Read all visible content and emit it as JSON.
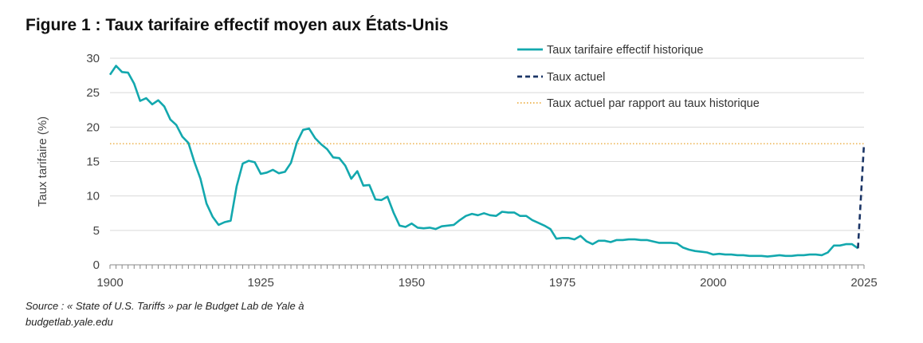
{
  "figure": {
    "title": "Figure 1 : Taux tarifaire effectif moyen aux États-Unis",
    "source_line1": "Source : « State of U.S. Tariffs » par le Budget Lab de Yale à",
    "source_line2": "budgetlab.yale.edu"
  },
  "colors": {
    "historical": "#13A8AE",
    "current": "#1B3566",
    "reference": "#E9A32A",
    "grid": "#D9D9D9",
    "axis": "#888888"
  },
  "chart_data": {
    "type": "line",
    "title": "",
    "xlabel": "",
    "ylabel": "Taux tarifaire (%)",
    "xlim": [
      1900,
      2025
    ],
    "ylim": [
      0,
      30
    ],
    "xticks": [
      1900,
      1925,
      1950,
      1975,
      2000,
      2025
    ],
    "yticks": [
      0,
      5,
      10,
      15,
      20,
      25,
      30
    ],
    "grid": "horizontal",
    "legend_position": "top-right",
    "series": [
      {
        "name": "Taux tarifaire effectif historique",
        "style": "solid",
        "color": "#13A8AE",
        "x": [
          1900,
          1901,
          1902,
          1903,
          1904,
          1905,
          1906,
          1907,
          1908,
          1909,
          1910,
          1911,
          1912,
          1913,
          1914,
          1915,
          1916,
          1917,
          1918,
          1919,
          1920,
          1921,
          1922,
          1923,
          1924,
          1925,
          1926,
          1927,
          1928,
          1929,
          1930,
          1931,
          1932,
          1933,
          1934,
          1935,
          1936,
          1937,
          1938,
          1939,
          1940,
          1941,
          1942,
          1943,
          1944,
          1945,
          1946,
          1947,
          1948,
          1949,
          1950,
          1951,
          1952,
          1953,
          1954,
          1955,
          1956,
          1957,
          1958,
          1959,
          1960,
          1961,
          1962,
          1963,
          1964,
          1965,
          1966,
          1967,
          1968,
          1969,
          1970,
          1971,
          1972,
          1973,
          1974,
          1975,
          1976,
          1977,
          1978,
          1979,
          1980,
          1981,
          1982,
          1983,
          1984,
          1985,
          1986,
          1987,
          1988,
          1989,
          1990,
          1991,
          1992,
          1993,
          1994,
          1995,
          1996,
          1997,
          1998,
          1999,
          2000,
          2001,
          2002,
          2003,
          2004,
          2005,
          2006,
          2007,
          2008,
          2009,
          2010,
          2011,
          2012,
          2013,
          2014,
          2015,
          2016,
          2017,
          2018,
          2019,
          2020,
          2021,
          2022,
          2023,
          2024
        ],
        "y": [
          27.6,
          28.9,
          28.0,
          27.9,
          26.3,
          23.8,
          24.2,
          23.3,
          23.9,
          23.0,
          21.1,
          20.3,
          18.6,
          17.7,
          14.9,
          12.5,
          8.9,
          7.0,
          5.8,
          6.2,
          6.4,
          11.4,
          14.7,
          15.1,
          14.9,
          13.2,
          13.4,
          13.8,
          13.3,
          13.5,
          14.8,
          17.8,
          19.6,
          19.8,
          18.4,
          17.5,
          16.8,
          15.6,
          15.5,
          14.4,
          12.5,
          13.6,
          11.5,
          11.6,
          9.5,
          9.4,
          9.9,
          7.6,
          5.7,
          5.5,
          6.0,
          5.4,
          5.3,
          5.4,
          5.2,
          5.6,
          5.7,
          5.8,
          6.5,
          7.1,
          7.4,
          7.2,
          7.5,
          7.2,
          7.1,
          7.7,
          7.6,
          7.6,
          7.1,
          7.1,
          6.5,
          6.1,
          5.7,
          5.2,
          3.8,
          3.9,
          3.9,
          3.7,
          4.2,
          3.4,
          3.0,
          3.5,
          3.5,
          3.3,
          3.6,
          3.6,
          3.7,
          3.7,
          3.6,
          3.6,
          3.4,
          3.2,
          3.2,
          3.2,
          3.1,
          2.5,
          2.2,
          2.0,
          1.9,
          1.8,
          1.5,
          1.6,
          1.5,
          1.5,
          1.4,
          1.4,
          1.3,
          1.3,
          1.3,
          1.2,
          1.3,
          1.4,
          1.3,
          1.3,
          1.4,
          1.4,
          1.5,
          1.5,
          1.4,
          1.8,
          2.8,
          2.8,
          3.0,
          3.0,
          2.4
        ]
      },
      {
        "name": "Taux actuel",
        "style": "dashed",
        "color": "#1B3566",
        "x": [
          2024,
          2025
        ],
        "y": [
          2.4,
          17.6
        ]
      },
      {
        "name": "Taux actuel par rapport au taux historique",
        "style": "dotted",
        "color": "#E9A32A",
        "x": [
          1900,
          2025
        ],
        "y": [
          17.6,
          17.6
        ]
      }
    ]
  }
}
